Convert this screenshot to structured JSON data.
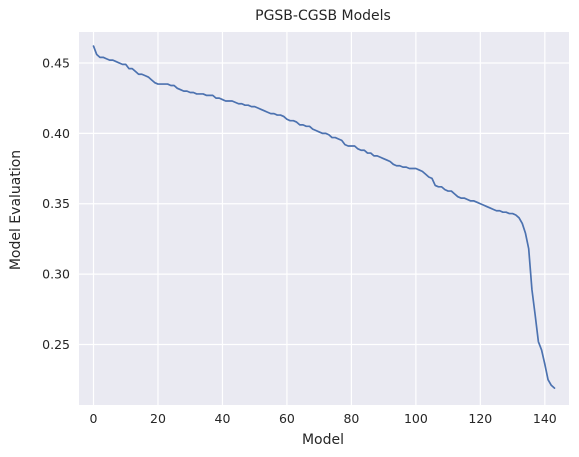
{
  "chart_data": {
    "type": "line",
    "title": "PGSB-CGSB Models",
    "xlabel": "Model",
    "ylabel": "Model Evaluation",
    "xlim": [
      -4.5,
      147.5
    ],
    "ylim": [
      0.207,
      0.472
    ],
    "xticks": [
      0,
      20,
      40,
      60,
      80,
      100,
      120,
      140
    ],
    "xtick_labels": [
      "0",
      "20",
      "40",
      "60",
      "80",
      "100",
      "120",
      "140"
    ],
    "yticks": [
      0.25,
      0.3,
      0.35,
      0.4,
      0.45
    ],
    "ytick_labels": [
      "0.25",
      "0.30",
      "0.35",
      "0.40",
      "0.45"
    ],
    "grid": true,
    "background": "#eaeaf2",
    "line_color": "#4c72b0",
    "series": [
      {
        "x": [
          0,
          1,
          2,
          3,
          4,
          5,
          6,
          7,
          8,
          9,
          10,
          11,
          12,
          13,
          14,
          15,
          16,
          17,
          18,
          19,
          20,
          21,
          22,
          23,
          24,
          25,
          26,
          27,
          28,
          29,
          30,
          31,
          32,
          33,
          34,
          35,
          36,
          37,
          38,
          39,
          40,
          41,
          42,
          43,
          44,
          45,
          46,
          47,
          48,
          49,
          50,
          51,
          52,
          53,
          54,
          55,
          56,
          57,
          58,
          59,
          60,
          61,
          62,
          63,
          64,
          65,
          66,
          67,
          68,
          69,
          70,
          71,
          72,
          73,
          74,
          75,
          76,
          77,
          78,
          79,
          80,
          81,
          82,
          83,
          84,
          85,
          86,
          87,
          88,
          89,
          90,
          91,
          92,
          93,
          94,
          95,
          96,
          97,
          98,
          99,
          100,
          101,
          102,
          103,
          104,
          105,
          106,
          107,
          108,
          109,
          110,
          111,
          112,
          113,
          114,
          115,
          116,
          117,
          118,
          119,
          120,
          121,
          122,
          123,
          124,
          125,
          126,
          127,
          128,
          129,
          130,
          131,
          132,
          133,
          134,
          135,
          136,
          137,
          138,
          139,
          140,
          141,
          142,
          143
        ],
        "y": [
          0.462,
          0.456,
          0.454,
          0.454,
          0.453,
          0.452,
          0.452,
          0.451,
          0.45,
          0.449,
          0.449,
          0.446,
          0.446,
          0.444,
          0.442,
          0.442,
          0.441,
          0.44,
          0.438,
          0.436,
          0.435,
          0.435,
          0.435,
          0.435,
          0.434,
          0.434,
          0.432,
          0.431,
          0.43,
          0.43,
          0.429,
          0.429,
          0.428,
          0.428,
          0.428,
          0.427,
          0.427,
          0.427,
          0.425,
          0.425,
          0.424,
          0.423,
          0.423,
          0.423,
          0.422,
          0.421,
          0.421,
          0.42,
          0.42,
          0.419,
          0.419,
          0.418,
          0.417,
          0.416,
          0.415,
          0.414,
          0.414,
          0.413,
          0.413,
          0.412,
          0.41,
          0.409,
          0.409,
          0.408,
          0.406,
          0.406,
          0.405,
          0.405,
          0.403,
          0.402,
          0.401,
          0.4,
          0.4,
          0.399,
          0.397,
          0.397,
          0.396,
          0.395,
          0.392,
          0.391,
          0.391,
          0.391,
          0.389,
          0.388,
          0.388,
          0.386,
          0.386,
          0.384,
          0.384,
          0.383,
          0.382,
          0.381,
          0.38,
          0.378,
          0.377,
          0.377,
          0.376,
          0.376,
          0.375,
          0.375,
          0.375,
          0.374,
          0.373,
          0.371,
          0.369,
          0.368,
          0.363,
          0.362,
          0.362,
          0.36,
          0.359,
          0.359,
          0.357,
          0.355,
          0.354,
          0.354,
          0.353,
          0.352,
          0.352,
          0.351,
          0.35,
          0.349,
          0.348,
          0.347,
          0.346,
          0.345,
          0.345,
          0.344,
          0.344,
          0.343,
          0.343,
          0.342,
          0.34,
          0.336,
          0.329,
          0.318,
          0.289,
          0.271,
          0.252,
          0.246,
          0.236,
          0.225,
          0.221,
          0.219
        ]
      }
    ]
  }
}
